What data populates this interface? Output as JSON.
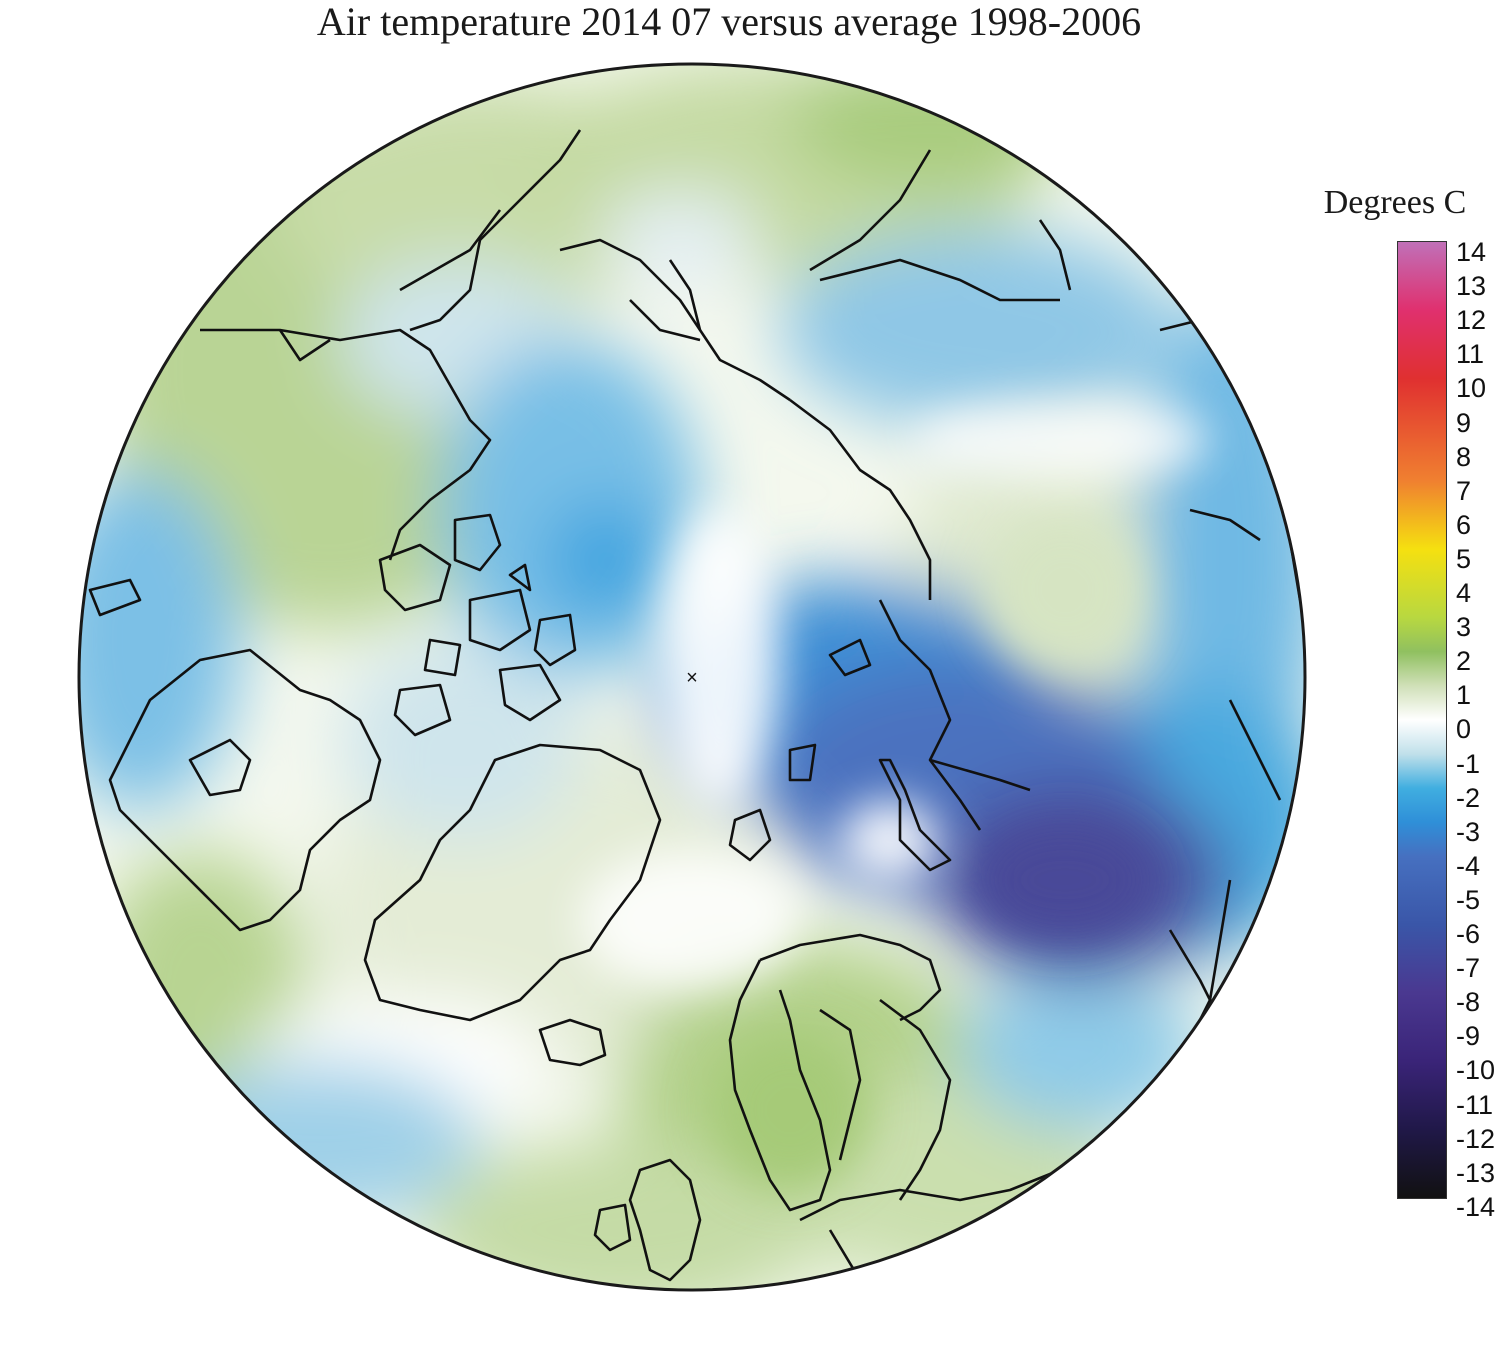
{
  "title": "Air temperature 2014 07 versus average 1998-2006",
  "legend": {
    "title": "Degrees C",
    "ticks": [
      "14",
      "13",
      "12",
      "11",
      "10",
      "9",
      "8",
      "7",
      "6",
      "5",
      "4",
      "3",
      "2",
      "1",
      "0",
      "-1",
      "-2",
      "-3",
      "-4",
      "-5",
      "-6",
      "-7",
      "-8",
      "-9",
      "-10",
      "-11",
      "-12",
      "-13",
      "-14"
    ],
    "min": -14,
    "max": 14,
    "gradient_stops": [
      {
        "value": 14,
        "color": "#c070b8"
      },
      {
        "value": 12,
        "color": "#e0306e"
      },
      {
        "value": 10,
        "color": "#e03030"
      },
      {
        "value": 7,
        "color": "#f08030"
      },
      {
        "value": 5,
        "color": "#f5e010"
      },
      {
        "value": 3,
        "color": "#b8d840"
      },
      {
        "value": 2,
        "color": "#90c060"
      },
      {
        "value": 1,
        "color": "#d0e0b8"
      },
      {
        "value": 0,
        "color": "#ffffff"
      },
      {
        "value": -1,
        "color": "#c0e0ea"
      },
      {
        "value": -2,
        "color": "#40aee0"
      },
      {
        "value": -3,
        "color": "#2f8fd8"
      },
      {
        "value": -4,
        "color": "#4670c0"
      },
      {
        "value": -6,
        "color": "#3a56a8"
      },
      {
        "value": -8,
        "color": "#4a3890"
      },
      {
        "value": -10,
        "color": "#3a2478"
      },
      {
        "value": -12,
        "color": "#201848"
      },
      {
        "value": -14,
        "color": "#111111"
      }
    ]
  },
  "map": {
    "projection": "north polar stereographic",
    "pole_marker": "×",
    "colors": {
      "warm_1": "#dde8cc",
      "warm_2": "#b9d495",
      "warm_3": "#9bc66d",
      "neutral": "#ffffff",
      "cool_1": "#cfe5ec",
      "cool_2": "#9cd0e6",
      "cool_3": "#4aa9df",
      "cold_4": "#4a6fbe",
      "cold_5": "#4a4f9e",
      "coast": "#111111"
    }
  }
}
